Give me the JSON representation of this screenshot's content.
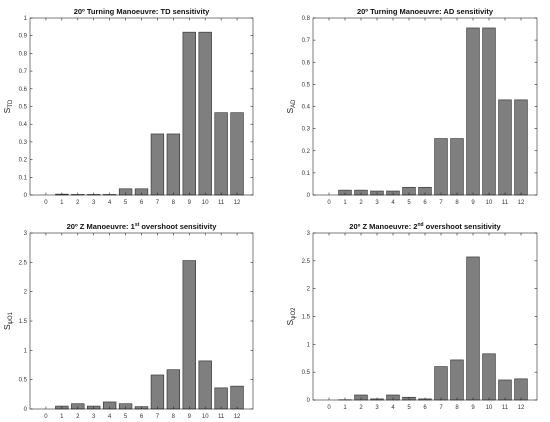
{
  "figure": {
    "background": "#ffffff",
    "bar_color": "#7f7f7f",
    "bar_edge": "#2b2b2b"
  },
  "chart_data": [
    {
      "type": "bar",
      "title_parts": {
        "pre": "20º Turning Manoeuvre: TD sensitivity",
        "sup": "",
        "post": ""
      },
      "ylabel": {
        "main": "S",
        "sub": "TD"
      },
      "xlabel": "",
      "categories": [
        "0",
        "1",
        "2",
        "3",
        "4",
        "5",
        "6",
        "7",
        "8",
        "9",
        "10",
        "11",
        "12"
      ],
      "values": [
        0.0,
        0.005,
        0.003,
        0.003,
        0.003,
        0.035,
        0.035,
        0.345,
        0.345,
        0.92,
        0.92,
        0.465,
        0.465
      ],
      "ylim": [
        0,
        1
      ],
      "yticks": [
        0,
        0.1,
        0.2,
        0.3,
        0.4,
        0.5,
        0.6,
        0.7,
        0.8,
        0.9,
        1
      ],
      "ytick_labels": [
        "0",
        "0.1",
        "0.2",
        "0.3",
        "0.4",
        "0.5",
        "0.6",
        "0.7",
        "0.8",
        "0.9",
        "1"
      ],
      "grid": false
    },
    {
      "type": "bar",
      "title_parts": {
        "pre": "20º Turning Manoeuvre: AD sensitivity",
        "sup": "",
        "post": ""
      },
      "ylabel": {
        "main": "S",
        "sub": "AD"
      },
      "xlabel": "",
      "categories": [
        "0",
        "1",
        "2",
        "3",
        "4",
        "5",
        "6",
        "7",
        "8",
        "9",
        "10",
        "11",
        "12"
      ],
      "values": [
        0.0,
        0.022,
        0.022,
        0.018,
        0.018,
        0.035,
        0.035,
        0.255,
        0.255,
        0.755,
        0.755,
        0.43,
        0.43
      ],
      "ylim": [
        0,
        0.8
      ],
      "yticks": [
        0,
        0.1,
        0.2,
        0.3,
        0.4,
        0.5,
        0.6,
        0.7,
        0.8
      ],
      "ytick_labels": [
        "0",
        "0.1",
        "0.2",
        "0.3",
        "0.4",
        "0.5",
        "0.6",
        "0.7",
        "0.8"
      ],
      "grid": false
    },
    {
      "type": "bar",
      "title_parts": {
        "pre": "20º Z Manoeuvre: 1",
        "sup": "st",
        "post": " overshoot sensitivity"
      },
      "ylabel": {
        "main": "S",
        "sub": "ψO1"
      },
      "xlabel": "",
      "categories": [
        "0",
        "1",
        "2",
        "3",
        "4",
        "5",
        "6",
        "7",
        "8",
        "9",
        "10",
        "11",
        "12"
      ],
      "values": [
        0.0,
        0.05,
        0.09,
        0.05,
        0.12,
        0.09,
        0.04,
        0.58,
        0.67,
        2.53,
        0.82,
        0.36,
        0.39
      ],
      "ylim": [
        0,
        3
      ],
      "yticks": [
        0,
        0.5,
        1,
        1.5,
        2,
        2.5,
        3
      ],
      "ytick_labels": [
        "0",
        "0.5",
        "1",
        "1.5",
        "2",
        "2.5",
        "3"
      ],
      "grid": false
    },
    {
      "type": "bar",
      "title_parts": {
        "pre": "20º Z Manoeuvre: 2",
        "sup": "nd",
        "post": " overshoot sensitivity"
      },
      "ylabel": {
        "main": "S",
        "sub": "ψO2"
      },
      "xlabel": "",
      "categories": [
        "0",
        "1",
        "2",
        "3",
        "4",
        "5",
        "6",
        "7",
        "8",
        "9",
        "10",
        "11",
        "12"
      ],
      "values": [
        0.0,
        0.005,
        0.09,
        0.02,
        0.09,
        0.05,
        0.02,
        0.6,
        0.72,
        2.57,
        0.83,
        0.36,
        0.38
      ],
      "ylim": [
        0,
        3
      ],
      "yticks": [
        0,
        0.5,
        1,
        1.5,
        2,
        2.5,
        3
      ],
      "ytick_labels": [
        "0",
        "0.5",
        "1",
        "1.5",
        "2",
        "2.5",
        "3"
      ],
      "grid": false
    }
  ]
}
